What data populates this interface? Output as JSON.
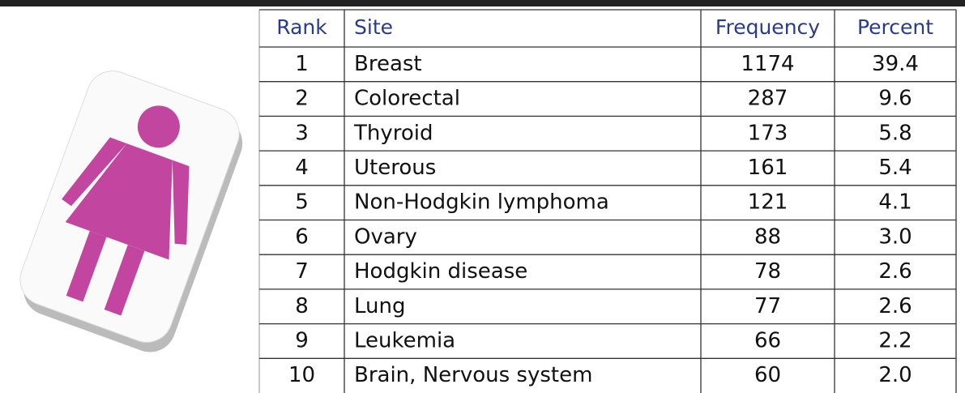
{
  "table": {
    "header": [
      "Rank",
      "Site",
      "Frequency",
      "Percent"
    ],
    "rows": [
      [
        1,
        "Breast",
        1174,
        "39.4"
      ],
      [
        2,
        "Colorectal",
        287,
        "9.6"
      ],
      [
        3,
        "Thyroid",
        173,
        "5.8"
      ],
      [
        4,
        "Uterous",
        161,
        "5.4"
      ],
      [
        5,
        "Non-Hodgkin lymphoma",
        121,
        "4.1"
      ],
      [
        6,
        "Ovary",
        88,
        "3.0"
      ],
      [
        7,
        "Hodgkin disease",
        78,
        "2.6"
      ],
      [
        8,
        "Lung",
        77,
        "2.6"
      ],
      [
        9,
        "Leukemia",
        66,
        "2.2"
      ],
      [
        10,
        "Brain, Nervous system",
        60,
        "2.0"
      ]
    ]
  }
}
